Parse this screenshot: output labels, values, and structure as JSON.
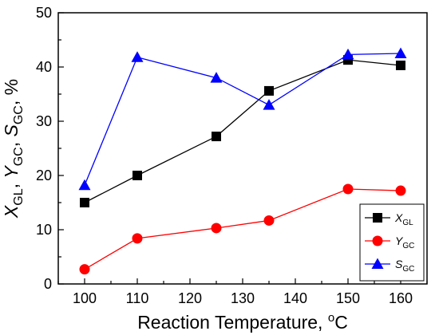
{
  "chart_data": {
    "type": "line",
    "x": [
      100,
      110,
      125,
      135,
      150,
      160
    ],
    "xlim": [
      95,
      165
    ],
    "ylim": [
      0,
      50
    ],
    "xticks": [
      100,
      110,
      120,
      130,
      140,
      150,
      160
    ],
    "yticks": [
      0,
      10,
      20,
      30,
      40,
      50
    ],
    "xlabel": {
      "main": "Reaction Temperature, ",
      "sup": "o",
      "unit": "C"
    },
    "ylabel": {
      "parts": [
        {
          "text": "X",
          "italic": true,
          "sub": false
        },
        {
          "text": "GL",
          "italic": false,
          "sub": true
        },
        {
          "text": ", ",
          "italic": false,
          "sub": false
        },
        {
          "text": "Y",
          "italic": true,
          "sub": false
        },
        {
          "text": "GC",
          "italic": false,
          "sub": true
        },
        {
          "text": ", ",
          "italic": false,
          "sub": false
        },
        {
          "text": "S",
          "italic": true,
          "sub": false
        },
        {
          "text": "GC",
          "italic": false,
          "sub": true
        },
        {
          "text": ", %",
          "italic": false,
          "sub": false
        }
      ]
    },
    "legend_position": "bottom-right",
    "grid": false,
    "series": [
      {
        "id": "xgl",
        "name_main": "X",
        "name_sub": "GL",
        "color": "#000000",
        "marker": "square",
        "values": [
          15.0,
          20.0,
          27.2,
          35.6,
          41.3,
          40.3
        ]
      },
      {
        "id": "ygc",
        "name_main": "Y",
        "name_sub": "GC",
        "color": "#ff0000",
        "marker": "circle",
        "values": [
          2.7,
          8.4,
          10.3,
          11.7,
          17.5,
          17.2
        ]
      },
      {
        "id": "sgc",
        "name_main": "S",
        "name_sub": "GC",
        "color": "#0000ff",
        "marker": "triangle",
        "values": [
          18.2,
          41.8,
          38.0,
          33.0,
          42.3,
          42.5
        ]
      }
    ]
  }
}
